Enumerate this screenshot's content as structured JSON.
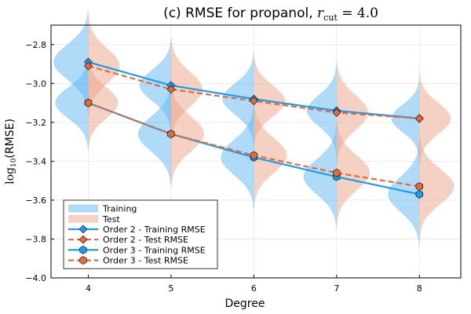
{
  "chart_data": {
    "type": "line",
    "title": "(c) RMSE for propanol, ",
    "title_math": "r",
    "title_math_sub": "cut",
    "title_math_rest": " = 4.0",
    "xlabel": "Degree",
    "ylabel": "(RMSE)",
    "ylabel_prefix": "log",
    "ylabel_sub": "10",
    "xlim": [
      3.55,
      8.5
    ],
    "ylim": [
      -4.0,
      -2.7
    ],
    "x": [
      4,
      5,
      6,
      7,
      8
    ],
    "xticks": [
      4,
      5,
      6,
      7,
      8
    ],
    "xtick_labels": [
      "4",
      "5",
      "6",
      "7",
      "8"
    ],
    "yticks": [
      -4.0,
      -3.8,
      -3.6,
      -3.4,
      -3.2,
      -3.0,
      -2.8
    ],
    "ytick_labels": [
      "−4.0",
      "−3.8",
      "−3.6",
      "−3.4",
      "−3.2",
      "−3.0",
      "−2.8"
    ],
    "grid": true,
    "legend_position": "bottom-left",
    "series": [
      {
        "name": "Order 2 - Training RMSE",
        "color": "#1f9be8",
        "dash": "solid",
        "marker": "diamond",
        "values": [
          -2.89,
          -3.01,
          -3.08,
          -3.14,
          -3.18
        ]
      },
      {
        "name": "Order 2 - Test RMSE",
        "color": "#e26a3e",
        "dash": "dashed",
        "marker": "diamond",
        "values": [
          -2.91,
          -3.03,
          -3.09,
          -3.15,
          -3.18
        ]
      },
      {
        "name": "Order 3 - Training RMSE",
        "color": "#1f9be8",
        "dash": "solid",
        "marker": "hexagon",
        "values": [
          -3.1,
          -3.26,
          -3.38,
          -3.48,
          -3.57
        ]
      },
      {
        "name": "Order 3 - Test RMSE",
        "color": "#e26a3e",
        "dash": "dashed",
        "marker": "hexagon",
        "values": [
          -3.1,
          -3.26,
          -3.37,
          -3.46,
          -3.53
        ]
      }
    ],
    "violins": [
      {
        "name": "Training",
        "side": "left",
        "color": "#5fb8f3",
        "groups": [
          {
            "x": 4,
            "center": -2.89,
            "spread": 0.09,
            "width": 0.42
          },
          {
            "x": 4,
            "center": -3.1,
            "spread": 0.08,
            "width": 0.4
          },
          {
            "x": 5,
            "center": -3.01,
            "spread": 0.08,
            "width": 0.38
          },
          {
            "x": 5,
            "center": -3.26,
            "spread": 0.09,
            "width": 0.4
          },
          {
            "x": 6,
            "center": -3.08,
            "spread": 0.08,
            "width": 0.38
          },
          {
            "x": 6,
            "center": -3.38,
            "spread": 0.09,
            "width": 0.4
          },
          {
            "x": 7,
            "center": -3.14,
            "spread": 0.08,
            "width": 0.36
          },
          {
            "x": 7,
            "center": -3.48,
            "spread": 0.09,
            "width": 0.4
          },
          {
            "x": 8,
            "center": -3.18,
            "spread": 0.07,
            "width": 0.34
          },
          {
            "x": 8,
            "center": -3.57,
            "spread": 0.09,
            "width": 0.38
          }
        ]
      },
      {
        "name": "Test",
        "side": "right",
        "color": "#eca38a",
        "groups": [
          {
            "x": 4,
            "center": -2.91,
            "spread": 0.09,
            "width": 0.38
          },
          {
            "x": 4,
            "center": -3.1,
            "spread": 0.08,
            "width": 0.36
          },
          {
            "x": 5,
            "center": -3.03,
            "spread": 0.09,
            "width": 0.38
          },
          {
            "x": 5,
            "center": -3.26,
            "spread": 0.09,
            "width": 0.4
          },
          {
            "x": 6,
            "center": -3.09,
            "spread": 0.08,
            "width": 0.38
          },
          {
            "x": 6,
            "center": -3.37,
            "spread": 0.09,
            "width": 0.4
          },
          {
            "x": 7,
            "center": -3.15,
            "spread": 0.09,
            "width": 0.38
          },
          {
            "x": 7,
            "center": -3.46,
            "spread": 0.09,
            "width": 0.4
          },
          {
            "x": 8,
            "center": -3.18,
            "spread": 0.08,
            "width": 0.38
          },
          {
            "x": 8,
            "center": -3.53,
            "spread": 0.09,
            "width": 0.42
          }
        ]
      }
    ]
  }
}
